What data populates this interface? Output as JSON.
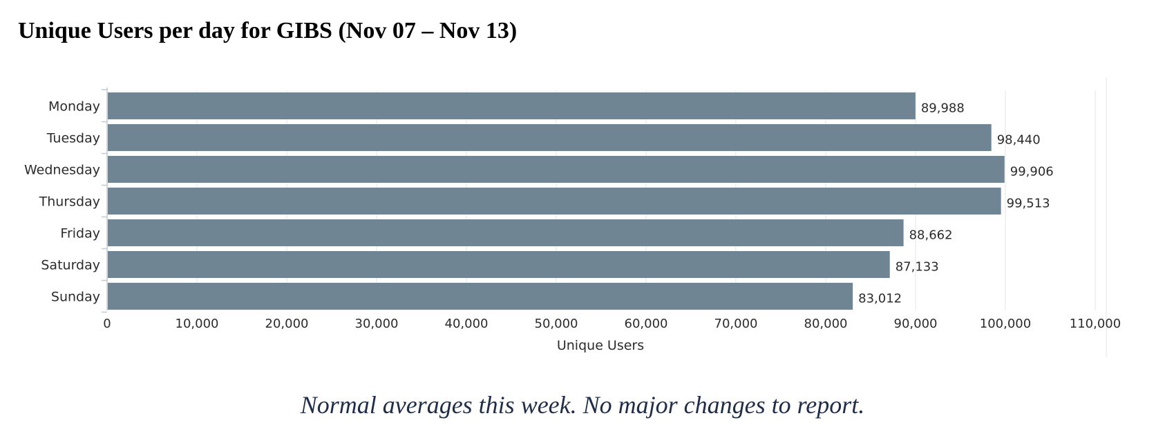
{
  "header": {
    "title": "Unique Users per day for GIBS (Nov 07 – Nov 13)"
  },
  "chart_data": {
    "type": "bar",
    "orientation": "horizontal",
    "title": "",
    "categories": [
      "Monday",
      "Tuesday",
      "Wednesday",
      "Thursday",
      "Friday",
      "Saturday",
      "Sunday"
    ],
    "values": [
      89988,
      98440,
      99906,
      99513,
      88662,
      87133,
      83012
    ],
    "value_labels": [
      "89,988",
      "98,440",
      "99,906",
      "99,513",
      "88,662",
      "87,133",
      "83,012"
    ],
    "xlabel": "Unique Users",
    "ylabel": "",
    "xlim": [
      0,
      110000
    ],
    "x_ticks": [
      0,
      10000,
      20000,
      30000,
      40000,
      50000,
      60000,
      70000,
      80000,
      90000,
      100000,
      110000
    ],
    "x_tick_labels": [
      "0",
      "10,000",
      "20,000",
      "30,000",
      "40,000",
      "50,000",
      "60,000",
      "70,000",
      "80,000",
      "90,000",
      "100,000",
      "110,000"
    ],
    "grid": true,
    "legend": "none",
    "bar_color": "#708593",
    "grid_color": "#e3e6e9",
    "axis_color": "#c4c9cd",
    "text_color": "#2b2b2b"
  },
  "footer": {
    "comment": "Normal averages this week.  No major changes to report."
  }
}
